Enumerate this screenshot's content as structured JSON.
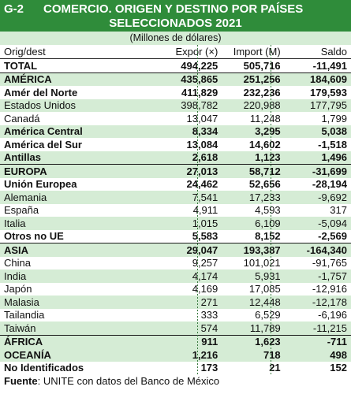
{
  "header": {
    "code": "G-2",
    "title_line1": "COMERCIO. ORIGEN Y DESTINO POR PAÍSES",
    "title_line2": "SELECCIONADOS 2021"
  },
  "units": "(Millones de dólares)",
  "columns": [
    "Orig/dest",
    "Expor (×)",
    "Import (M)",
    "Saldo"
  ],
  "rows": [
    {
      "name": "TOTAL",
      "expor": "494,225",
      "import": "505,716",
      "saldo": "-11,491"
    },
    {
      "name": "AMÉRICA",
      "expor": "435,865",
      "import": "251,256",
      "saldo": "184,609"
    },
    {
      "name": "Amér del Norte",
      "expor": "411,829",
      "import": "232,236",
      "saldo": "179,593"
    },
    {
      "name": "Estados Unidos",
      "expor": "398,782",
      "import": "220,988",
      "saldo": "177,795"
    },
    {
      "name": "Canadá",
      "expor": "13,047",
      "import": "11,248",
      "saldo": "1,799"
    },
    {
      "name": "América Central",
      "expor": "8,334",
      "import": "3,295",
      "saldo": "5,038"
    },
    {
      "name": "América del Sur",
      "expor": "13,084",
      "import": "14,602",
      "saldo": "-1,518"
    },
    {
      "name": "Antillas",
      "expor": "2,618",
      "import": "1,123",
      "saldo": "1,496"
    },
    {
      "name": "EUROPA",
      "expor": "27,013",
      "import": "58,712",
      "saldo": "-31,699"
    },
    {
      "name": "Unión Europea",
      "expor": "24,462",
      "import": "52,656",
      "saldo": "-28,194"
    },
    {
      "name": "Alemania",
      "expor": "7,541",
      "import": "17,233",
      "saldo": "-9,692"
    },
    {
      "name": "España",
      "expor": "4,911",
      "import": "4,593",
      "saldo": "317"
    },
    {
      "name": "Italia",
      "expor": "1,015",
      "import": "6,109",
      "saldo": "-5,094"
    },
    {
      "name": "Otros no UE",
      "expor": "5,583",
      "import": "8,152",
      "saldo": "-2,569"
    },
    {
      "name": "ASIA",
      "expor": "29,047",
      "import": "193,387",
      "saldo": "-164,340"
    },
    {
      "name": "China",
      "expor": "9,257",
      "import": "101,021",
      "saldo": "-91,765"
    },
    {
      "name": "India",
      "expor": "4,174",
      "import": "5,931",
      "saldo": "-1,757"
    },
    {
      "name": "Japón",
      "expor": "4,169",
      "import": "17,085",
      "saldo": "-12,916"
    },
    {
      "name": "Malasia",
      "expor": "271",
      "import": "12,448",
      "saldo": "-12,178"
    },
    {
      "name": "Tailandia",
      "expor": "333",
      "import": "6,529",
      "saldo": "-6,196"
    },
    {
      "name": "Taiwán",
      "expor": "574",
      "import": "11,789",
      "saldo": "-11,215"
    },
    {
      "name": "ÁFRICA",
      "expor": "911",
      "import": "1,623",
      "saldo": "-711"
    },
    {
      "name": "OCEANÍA",
      "expor": "1,216",
      "import": "718",
      "saldo": "498"
    },
    {
      "name": "No Identificados",
      "expor": "173",
      "import": "21",
      "saldo": "152"
    }
  ],
  "footer": {
    "label": "Fuente",
    "text": ": UNITE con datos del Banco de México"
  },
  "colors": {
    "header_bg": "#2f8c3a",
    "stripe_bg": "#d5ecd5"
  }
}
